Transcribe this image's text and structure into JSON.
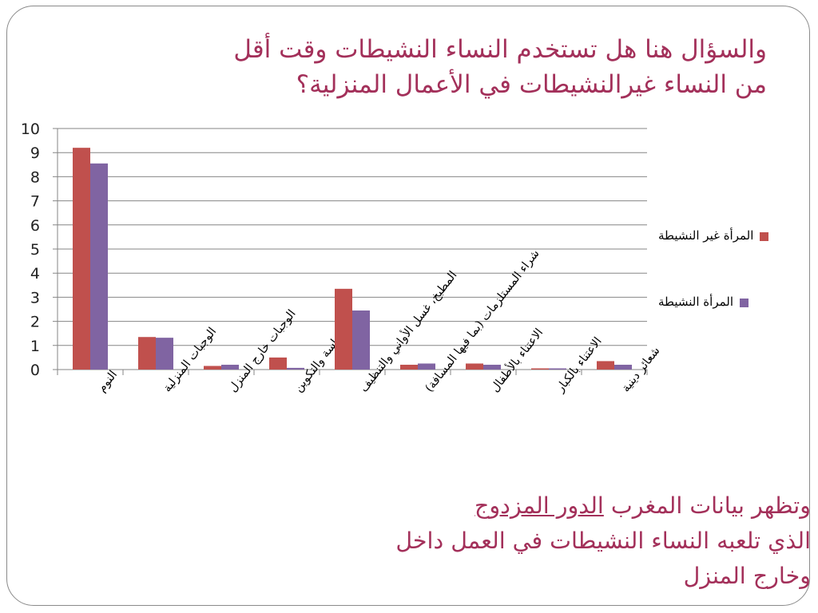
{
  "slide": {
    "title_line1": "والسؤال هنا هل تستخدم النساء النشيطات وقت أقل",
    "title_line2": "من النساء غيرالنشيطات في الأعمال المنزلية؟",
    "note_part1": "وتظهر بيانات المغرب ",
    "note_underlined": "الدور المزدوج",
    "note_part2": "الذي تلعبه النساء النشيطات في العمل داخل وخارج المنزل"
  },
  "colors": {
    "title": "#a3305a",
    "series1": "#c0504d",
    "series2": "#8064a2",
    "grid": "#868686"
  },
  "chart_data": {
    "type": "bar",
    "title": "",
    "xlabel": "",
    "ylabel": "",
    "ylim": [
      0,
      10
    ],
    "yticks": [
      0,
      1,
      2,
      3,
      4,
      5,
      6,
      7,
      8,
      9,
      10
    ],
    "grid": true,
    "legend_position": "right",
    "categories": [
      "النوم",
      "الوجبات المنزلية",
      "الوجبات خارج المنزل",
      "الدراسة والتكوين",
      "المطبخ، غسل الأواني والتنظيف",
      "شراء المستلزمات (بما فيها المسافة)",
      "الاعتناء بالأطفال",
      "الاعتناء بالكبار",
      "شعائر دينية"
    ],
    "series": [
      {
        "name": "المرأة غير النشيطة",
        "values": [
          9.2,
          1.35,
          0.15,
          0.5,
          3.35,
          0.2,
          0.25,
          0.05,
          0.35
        ]
      },
      {
        "name": "المرأة النشيطة",
        "values": [
          8.55,
          1.32,
          0.2,
          0.07,
          2.45,
          0.25,
          0.2,
          0.05,
          0.2
        ]
      }
    ]
  }
}
